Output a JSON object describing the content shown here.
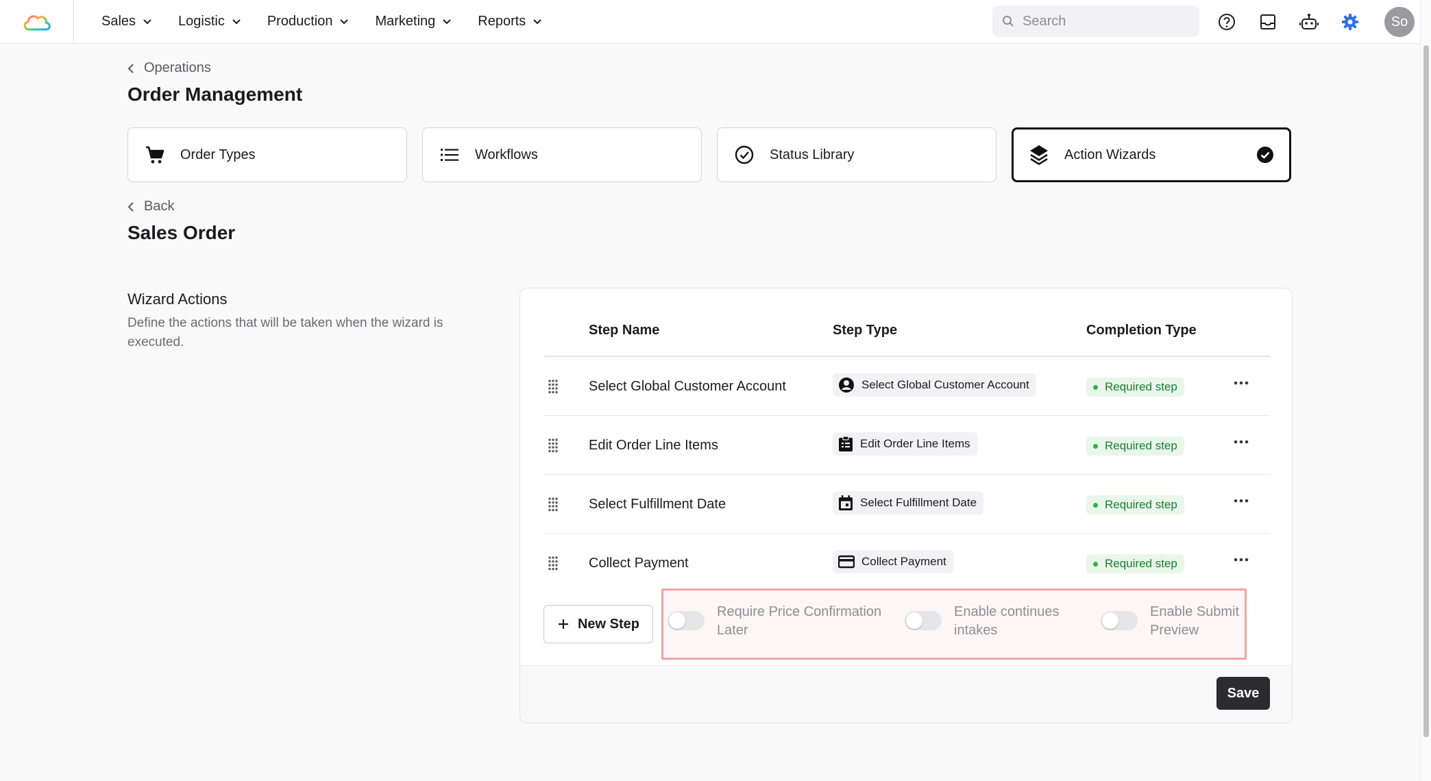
{
  "nav": {
    "items": [
      {
        "label": "Sales"
      },
      {
        "label": "Logistic"
      },
      {
        "label": "Production"
      },
      {
        "label": "Marketing"
      },
      {
        "label": "Reports"
      }
    ],
    "search_placeholder": "Search",
    "avatar_initials": "So"
  },
  "breadcrumb": {
    "label": "Operations"
  },
  "page_title": "Order Management",
  "tabs": [
    {
      "label": "Order Types",
      "icon": "cart-icon"
    },
    {
      "label": "Workflows",
      "icon": "list-icon"
    },
    {
      "label": "Status Library",
      "icon": "check-circle-icon"
    },
    {
      "label": "Action Wizards",
      "icon": "layers-icon",
      "active": true
    }
  ],
  "back_label": "Back",
  "section_title": "Sales Order",
  "wizard": {
    "title": "Wizard Actions",
    "description": "Define the actions that will be taken when the wizard is executed."
  },
  "table": {
    "headers": {
      "step_name": "Step Name",
      "step_type": "Step Type",
      "completion_type": "Completion Type"
    },
    "rows": [
      {
        "name": "Select Global Customer Account",
        "type": "Select Global Customer Account",
        "type_icon": "account-circle-icon",
        "completion": "Required step"
      },
      {
        "name": "Edit Order Line Items",
        "type": "Edit Order Line Items",
        "type_icon": "clipboard-icon",
        "completion": "Required step"
      },
      {
        "name": "Select Fulfillment Date",
        "type": "Select Fulfillment Date",
        "type_icon": "calendar-icon",
        "completion": "Required step"
      },
      {
        "name": "Collect Payment",
        "type": "Collect Payment",
        "type_icon": "credit-card-icon",
        "completion": "Required step"
      }
    ]
  },
  "new_step_label": "New Step",
  "options": [
    {
      "line1": "Require Price Confirmation",
      "line2": "Later",
      "enabled": false
    },
    {
      "line1": "Enable continues",
      "line2": "intakes",
      "enabled": false
    },
    {
      "line1": "Enable Submit",
      "line2": "Preview",
      "enabled": false
    }
  ],
  "save_label": "Save",
  "colors": {
    "accent": "#2f6fea",
    "badge_green": "#1e7a36",
    "highlight_border": "#f4a3a3"
  }
}
